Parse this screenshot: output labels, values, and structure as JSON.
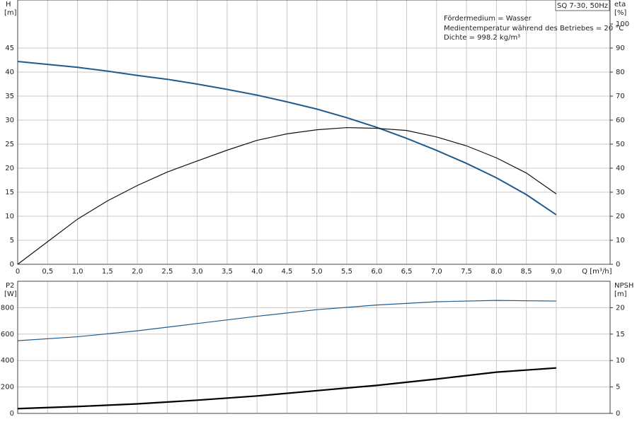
{
  "chart_data": [
    {
      "type": "line",
      "title": "SQ 7-30, 50Hz",
      "annotations": [
        "Fördermedium = Wasser",
        "Medientemperatur während des Betriebes = 20 °C",
        "Dichte = 998.2 kg/m³"
      ],
      "ylabel": "H",
      "yunit": "[m]",
      "y2label": "eta",
      "y2unit": "[%]",
      "xlabel": "Q [m³/h]",
      "x": [
        0,
        0.5,
        1,
        1.5,
        2,
        2.5,
        3,
        3.5,
        4,
        4.5,
        5,
        5.5,
        6,
        6.5,
        7,
        7.5,
        8,
        8.5,
        9
      ],
      "xlim": [
        0,
        9.9
      ],
      "xticks": [
        0,
        {
          "value": 0.5,
          "label": "0,5"
        },
        {
          "value": 1,
          "label": "1,0"
        },
        {
          "value": 1.5,
          "label": "1,5"
        },
        {
          "value": 2,
          "label": "2,0"
        },
        {
          "value": 2.5,
          "label": "2,5"
        },
        {
          "value": 3,
          "label": "3,0"
        },
        {
          "value": 3.5,
          "label": "3,5"
        },
        {
          "value": 4,
          "label": "4,0"
        },
        {
          "value": 4.5,
          "label": "4,5"
        },
        {
          "value": 5,
          "label": "5,0"
        },
        {
          "value": 5.5,
          "label": "5,5"
        },
        {
          "value": 6,
          "label": "6,0"
        },
        {
          "value": 6.5,
          "label": "6,5"
        },
        {
          "value": 7,
          "label": "7,0"
        },
        {
          "value": 7.5,
          "label": "7,5"
        },
        {
          "value": 8,
          "label": "8,0"
        },
        {
          "value": 8.5,
          "label": "8,5"
        },
        {
          "value": 9,
          "label": "9,0"
        }
      ],
      "ylim": [
        0,
        55
      ],
      "yticks": [
        0,
        5,
        10,
        15,
        20,
        25,
        30,
        35,
        40,
        45
      ],
      "y2lim": [
        0,
        110
      ],
      "y2ticks": [
        0,
        10,
        20,
        30,
        40,
        50,
        60,
        70,
        80,
        90,
        100
      ],
      "grid": true,
      "series": [
        {
          "color": "#1f5b8e",
          "linewidth": 2,
          "values": [
            42.2,
            41.6,
            41,
            40.2,
            39.3,
            38.5,
            37.5,
            36.4,
            35.2,
            33.8,
            32.3,
            30.5,
            28.5,
            26.2,
            23.7,
            21,
            18,
            14.5,
            10.3
          ]
        },
        {
          "color": "#111111",
          "linewidth": 1.2,
          "axis": "y2",
          "values": [
            0,
            9.4,
            18.8,
            26.4,
            32.8,
            38.4,
            43,
            47.5,
            51.6,
            54.3,
            56,
            56.9,
            56.6,
            55.7,
            53,
            49.3,
            44.3,
            38,
            29.3
          ]
        }
      ]
    },
    {
      "type": "line",
      "ylabel": "P2",
      "yunit": "[W]",
      "y2label": "NPSH",
      "y2unit": "[m]",
      "x": [
        0,
        1,
        2,
        3,
        4,
        5,
        6,
        7,
        8,
        9
      ],
      "xlim": [
        0,
        9.9
      ],
      "ylim": [
        0,
        1000
      ],
      "yticks": [
        0,
        200,
        400,
        600,
        800
      ],
      "y2lim": [
        0,
        25
      ],
      "y2ticks": [
        0,
        5,
        10,
        15,
        20
      ],
      "grid": true,
      "series": [
        {
          "color": "#1f5b8e",
          "linewidth": 1.2,
          "values": [
            550,
            580,
            625,
            680,
            735,
            785,
            820,
            845,
            855,
            850
          ]
        },
        {
          "color": "#000000",
          "linewidth": 2.2,
          "axis": "y2",
          "values": [
            0.9,
            1.3,
            1.8,
            2.5,
            3.3,
            4.3,
            5.3,
            6.5,
            7.8,
            8.6
          ]
        }
      ]
    }
  ]
}
